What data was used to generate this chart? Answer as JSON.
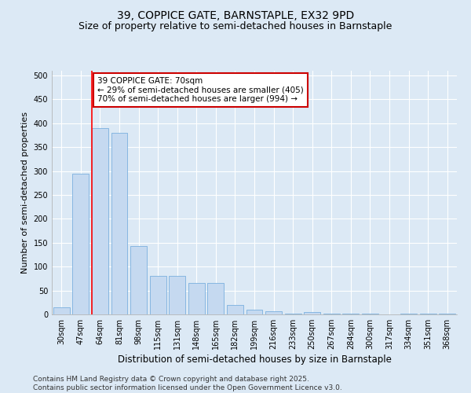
{
  "title1": "39, COPPICE GATE, BARNSTAPLE, EX32 9PD",
  "title2": "Size of property relative to semi-detached houses in Barnstaple",
  "xlabel": "Distribution of semi-detached houses by size in Barnstaple",
  "ylabel": "Number of semi-detached properties",
  "categories": [
    "30sqm",
    "47sqm",
    "64sqm",
    "81sqm",
    "98sqm",
    "115sqm",
    "131sqm",
    "148sqm",
    "165sqm",
    "182sqm",
    "199sqm",
    "216sqm",
    "233sqm",
    "250sqm",
    "267sqm",
    "284sqm",
    "300sqm",
    "317sqm",
    "334sqm",
    "351sqm",
    "368sqm"
  ],
  "values": [
    15,
    295,
    390,
    380,
    143,
    80,
    80,
    65,
    65,
    20,
    10,
    7,
    2,
    5,
    2,
    2,
    2,
    0,
    2,
    2,
    2
  ],
  "bar_color": "#c5d9f0",
  "bar_edge_color": "#7ab0de",
  "red_line_index": 2,
  "annotation_text": "39 COPPICE GATE: 70sqm\n← 29% of semi-detached houses are smaller (405)\n70% of semi-detached houses are larger (994) →",
  "annotation_box_facecolor": "#ffffff",
  "annotation_box_edgecolor": "#cc0000",
  "ylim": [
    0,
    510
  ],
  "yticks": [
    0,
    50,
    100,
    150,
    200,
    250,
    300,
    350,
    400,
    450,
    500
  ],
  "background_color": "#dce9f5",
  "plot_bg_color": "#dce9f5",
  "grid_color": "#ffffff",
  "footer_text": "Contains HM Land Registry data © Crown copyright and database right 2025.\nContains public sector information licensed under the Open Government Licence v3.0.",
  "title1_fontsize": 10,
  "title2_fontsize": 9,
  "xlabel_fontsize": 8.5,
  "ylabel_fontsize": 8,
  "tick_fontsize": 7,
  "annot_fontsize": 7.5,
  "footer_fontsize": 6.5
}
